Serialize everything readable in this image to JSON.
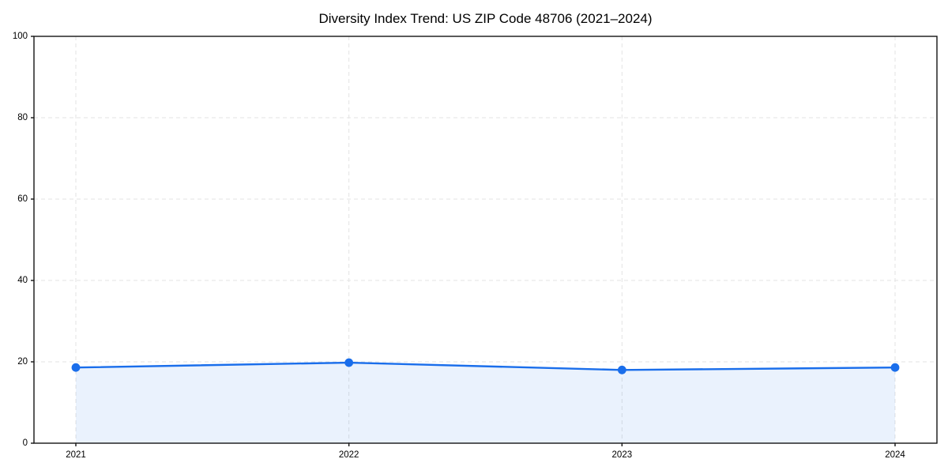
{
  "title": "Diversity Index Trend: US ZIP Code 48706 (2021–2024)",
  "colors": {
    "line": "#1a6eeb",
    "marker": "#1a6eeb",
    "area_fill": "#1a6eeb",
    "area_opacity": "0.09",
    "grid": "#e3e3e3",
    "axis": "#141414",
    "background": "#ffffff",
    "tick_text": "#000000"
  },
  "chart_data": {
    "type": "line",
    "title": "Diversity Index Trend: US ZIP Code 48706 (2021–2024)",
    "x": [
      2021,
      2022,
      2023,
      2024
    ],
    "xtick_labels": [
      "2021",
      "2022",
      "2023",
      "2024"
    ],
    "series": [
      {
        "name": "Diversity Index",
        "values": [
          18.6,
          19.8,
          18.0,
          18.6
        ]
      }
    ],
    "xlabel": "",
    "ylabel": "",
    "ylim": [
      0,
      100
    ],
    "yticks": [
      0,
      20,
      40,
      60,
      80,
      100
    ],
    "grid": true,
    "grid_style": "dashed",
    "area_fill": true,
    "markers": true,
    "legend": "none"
  }
}
